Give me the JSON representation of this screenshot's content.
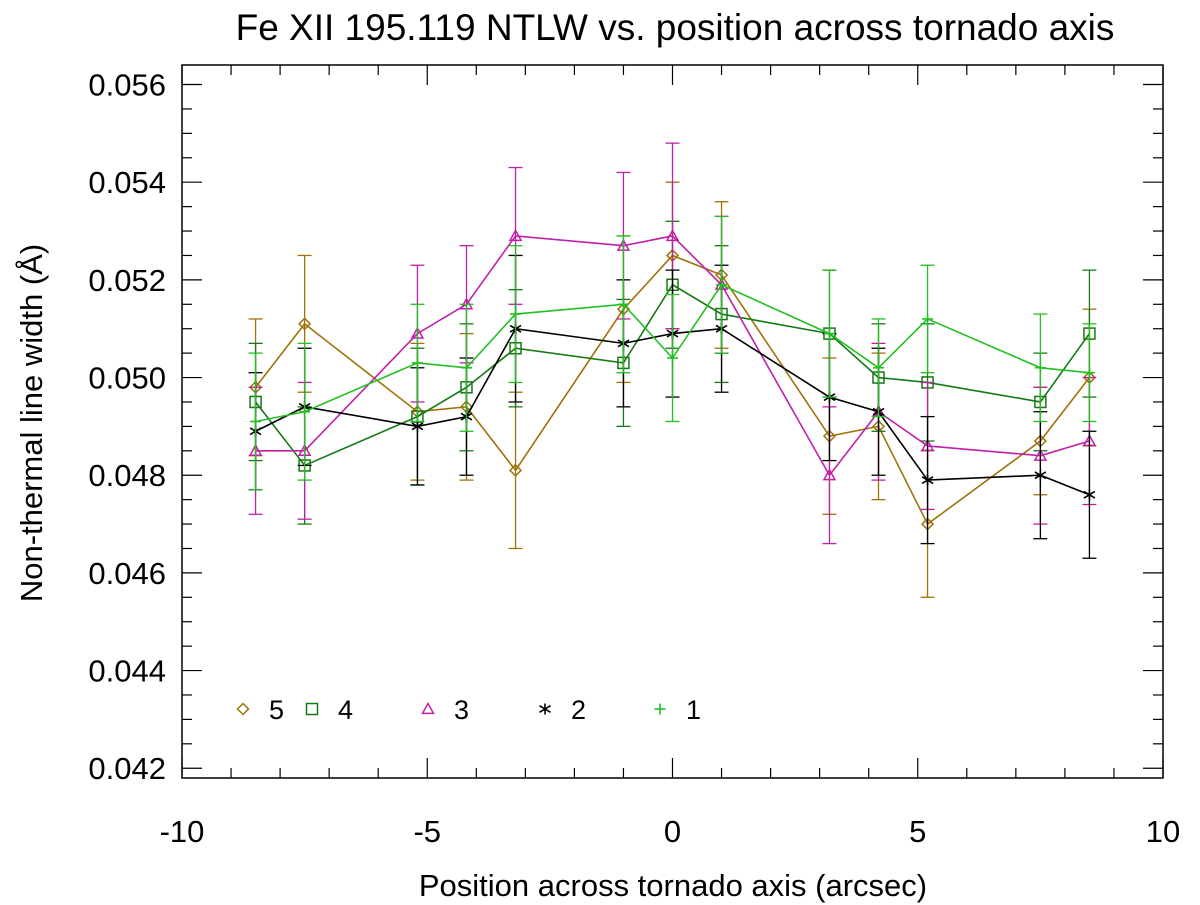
{
  "chart_data": {
    "type": "line",
    "title": "Fe XII 195.119 NTLW vs. position across tornado axis",
    "xlabel": "Position across tornado axis (arcsec)",
    "ylabel": "Non-thermal line width (Å)",
    "xlim": [
      -10,
      10
    ],
    "ylim": [
      0.0418,
      0.0564
    ],
    "xticks": [
      -10,
      -5,
      0,
      5,
      10
    ],
    "xtick_labels": [
      "-10",
      "-5",
      "0",
      "5",
      "10"
    ],
    "yticks": [
      0.042,
      0.044,
      0.046,
      0.048,
      0.05,
      0.052,
      0.054,
      0.056
    ],
    "ytick_labels": [
      "0.042",
      "0.044",
      "0.046",
      "0.048",
      "0.050",
      "0.052",
      "0.054",
      "0.056"
    ],
    "grid": false,
    "legend_position": "bottom-left",
    "series": [
      {
        "name": "5",
        "marker": "diamond",
        "color": "#A0720A",
        "x": [
          -8.5,
          -7.5,
          -5.2,
          -4.2,
          -3.2,
          -1.0,
          0.0,
          1.0,
          3.2,
          4.2,
          5.2,
          7.5,
          8.5
        ],
        "y": [
          0.0498,
          0.0511,
          0.0493,
          0.0494,
          0.0481,
          0.0514,
          0.0525,
          0.0521,
          0.0488,
          0.049,
          0.047,
          0.0487,
          0.05
        ],
        "err": [
          0.0014,
          0.0014,
          0.0014,
          0.0015,
          0.0016,
          0.0015,
          0.0015,
          0.0015,
          0.0016,
          0.0015,
          0.0015,
          0.0011,
          0.0014
        ]
      },
      {
        "name": "4",
        "marker": "square",
        "color": "#157A15",
        "x": [
          -8.5,
          -7.5,
          -5.2,
          -4.2,
          -3.2,
          -1.0,
          0.0,
          1.0,
          3.2,
          4.2,
          5.2,
          7.5,
          8.5
        ],
        "y": [
          0.0495,
          0.0482,
          0.0492,
          0.0498,
          0.0506,
          0.0503,
          0.0519,
          0.0513,
          0.0509,
          0.05,
          0.0499,
          0.0495,
          0.0509
        ],
        "err": [
          0.0012,
          0.0012,
          0.0014,
          0.0013,
          0.0012,
          0.0013,
          0.0013,
          0.0014,
          0.0013,
          0.0011,
          0.0012,
          0.001,
          0.0013
        ]
      },
      {
        "name": "3",
        "marker": "triangle",
        "color": "#C020A8",
        "x": [
          -8.5,
          -7.5,
          -5.2,
          -4.2,
          -3.2,
          -1.0,
          0.0,
          1.0,
          3.2,
          4.2,
          5.2,
          7.5,
          8.5
        ],
        "y": [
          0.0485,
          0.0485,
          0.0509,
          0.0515,
          0.0529,
          0.0527,
          0.0529,
          0.0519,
          0.048,
          0.0493,
          0.0486,
          0.0484,
          0.0487
        ],
        "err": [
          0.0013,
          0.0014,
          0.0014,
          0.0012,
          0.0014,
          0.0015,
          0.0019,
          0.0014,
          0.0014,
          0.0014,
          0.0013,
          0.0014,
          0.0013
        ]
      },
      {
        "name": "2",
        "marker": "asterisk",
        "color": "#000000",
        "x": [
          -8.5,
          -7.5,
          -5.2,
          -4.2,
          -3.2,
          -1.0,
          0.0,
          1.0,
          3.2,
          4.2,
          5.2,
          7.5,
          8.5
        ],
        "y": [
          0.0489,
          0.0494,
          0.049,
          0.0492,
          0.051,
          0.0507,
          0.0509,
          0.051,
          0.0496,
          0.0493,
          0.0479,
          0.048,
          0.0476
        ],
        "err": [
          0.0012,
          0.0012,
          0.0012,
          0.0012,
          0.0015,
          0.0013,
          0.0013,
          0.0013,
          0.0013,
          0.0013,
          0.0013,
          0.0013,
          0.0013
        ]
      },
      {
        "name": "1",
        "marker": "plus",
        "color": "#22C022",
        "x": [
          -8.5,
          -7.5,
          -5.2,
          -4.2,
          -3.2,
          -1.0,
          0.0,
          1.0,
          3.2,
          4.2,
          5.2,
          7.5,
          8.5
        ],
        "y": [
          0.0491,
          0.0493,
          0.0503,
          0.0502,
          0.0513,
          0.0515,
          0.0504,
          0.0519,
          0.0509,
          0.0502,
          0.0512,
          0.0502,
          0.0501
        ],
        "err": [
          0.0014,
          0.0014,
          0.0012,
          0.0013,
          0.0014,
          0.0014,
          0.0013,
          0.0014,
          0.0013,
          0.001,
          0.0011,
          0.0011,
          0.001
        ]
      }
    ]
  }
}
